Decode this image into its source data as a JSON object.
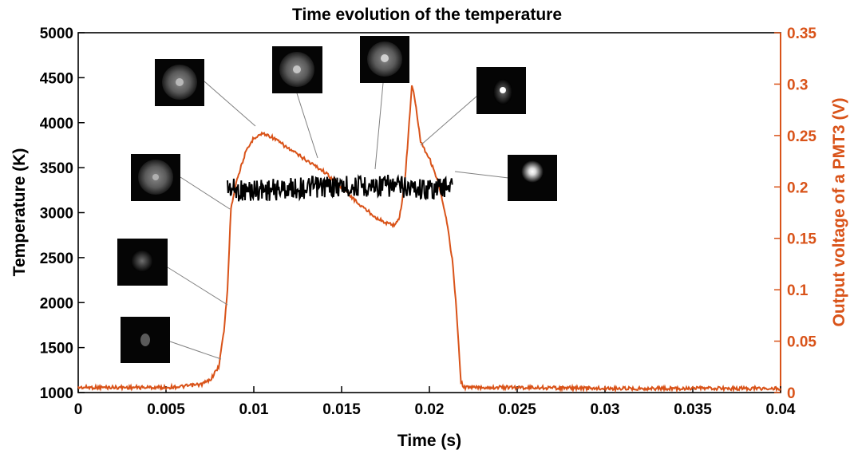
{
  "chart_data": {
    "type": "line",
    "title": "Time evolution of the temperature",
    "xlabel": "Time (s)",
    "ylabel_left": "Temperature (K)",
    "ylabel_right": "Output voltage of a PMT3 (V)",
    "xlim": [
      0,
      0.04
    ],
    "ylim_left": [
      1000,
      5000
    ],
    "ylim_right": [
      0,
      0.35
    ],
    "xticks": [
      "0",
      "0.005",
      "0.01",
      "0.015",
      "0.02",
      "0.025",
      "0.03",
      "0.035",
      "0.04"
    ],
    "yticks_left": [
      "1000",
      "1500",
      "2000",
      "2500",
      "3000",
      "3500",
      "4000",
      "4500",
      "5000"
    ],
    "yticks_right": [
      "0",
      "0.05",
      "0.1",
      "0.15",
      "0.2",
      "0.25",
      "0.3",
      "0.35"
    ],
    "colors": {
      "temperature": "#000000",
      "pmt": "#d95319",
      "leader": "#808080"
    },
    "series": [
      {
        "axis": "left",
        "x": [
          0.0085,
          0.009,
          0.0095,
          0.01,
          0.0105,
          0.011,
          0.0115,
          0.012,
          0.0125,
          0.013,
          0.0135,
          0.014,
          0.0145,
          0.015,
          0.0155,
          0.016,
          0.0165,
          0.017,
          0.0175,
          0.018,
          0.0185,
          0.019,
          0.0195,
          0.02,
          0.0205,
          0.021,
          0.0213
        ],
        "y": [
          3280,
          3250,
          3240,
          3250,
          3260,
          3250,
          3260,
          3270,
          3270,
          3280,
          3280,
          3290,
          3290,
          3290,
          3290,
          3290,
          3300,
          3300,
          3300,
          3290,
          3290,
          3280,
          3270,
          3260,
          3270,
          3300,
          3310
        ]
      },
      {
        "axis": "right",
        "x": [
          0,
          0.005,
          0.006,
          0.007,
          0.0075,
          0.008,
          0.0083,
          0.0085,
          0.0087,
          0.009,
          0.0095,
          0.01,
          0.0105,
          0.011,
          0.0115,
          0.012,
          0.013,
          0.014,
          0.015,
          0.016,
          0.017,
          0.0175,
          0.018,
          0.0183,
          0.0186,
          0.0188,
          0.019,
          0.0192,
          0.0195,
          0.0198,
          0.02,
          0.0205,
          0.021,
          0.0213,
          0.0215,
          0.0218,
          0.022,
          0.025,
          0.03,
          0.04
        ],
        "y": [
          0.005,
          0.005,
          0.006,
          0.008,
          0.012,
          0.025,
          0.06,
          0.1,
          0.18,
          0.205,
          0.232,
          0.248,
          0.252,
          0.249,
          0.243,
          0.237,
          0.226,
          0.215,
          0.2,
          0.183,
          0.17,
          0.165,
          0.163,
          0.17,
          0.205,
          0.25,
          0.3,
          0.282,
          0.245,
          0.234,
          0.228,
          0.205,
          0.165,
          0.13,
          0.09,
          0.01,
          0.005,
          0.005,
          0.004,
          0.004
        ]
      }
    ]
  }
}
